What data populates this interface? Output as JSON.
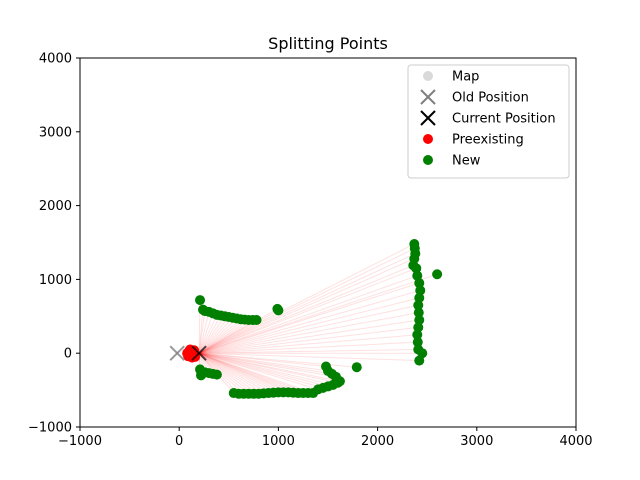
{
  "chart_data": {
    "type": "scatter",
    "title": "Splitting Points",
    "xlabel": "",
    "ylabel": "",
    "xlim": [
      -1000,
      4000
    ],
    "ylim": [
      -1000,
      4000
    ],
    "x_ticks": [
      -1000,
      0,
      1000,
      2000,
      3000,
      4000
    ],
    "y_ticks": [
      -1000,
      0,
      1000,
      2000,
      3000,
      4000
    ],
    "x_tick_labels": [
      "−1000",
      "0",
      "1000",
      "2000",
      "3000",
      "4000"
    ],
    "y_tick_labels": [
      "−1000",
      "0",
      "1000",
      "2000",
      "3000",
      "4000"
    ],
    "grid": false,
    "legend_position": "top-right",
    "legend": [
      {
        "label": "Map",
        "marker": "circle",
        "color": "#d9d9d9"
      },
      {
        "label": "Old Position",
        "marker": "x",
        "color": "#808080"
      },
      {
        "label": "Current Position",
        "marker": "x",
        "color": "#000000"
      },
      {
        "label": "Preexisting",
        "marker": "circle",
        "color": "#ff0000"
      },
      {
        "label": "New",
        "marker": "circle",
        "color": "#007f00"
      }
    ],
    "old_position": {
      "x": -20,
      "y": 0
    },
    "current_position": {
      "x": 200,
      "y": 0
    },
    "series": [
      {
        "name": "Preexisting",
        "color": "#ff0000",
        "points": [
          {
            "x": 80,
            "y": 0
          },
          {
            "x": 100,
            "y": 30
          },
          {
            "x": 120,
            "y": -20
          },
          {
            "x": 140,
            "y": 10
          },
          {
            "x": 90,
            "y": -40
          },
          {
            "x": 160,
            "y": -50
          },
          {
            "x": 110,
            "y": 50
          },
          {
            "x": 130,
            "y": -60
          },
          {
            "x": 150,
            "y": 40
          }
        ]
      },
      {
        "name": "New",
        "color": "#007f00",
        "points": [
          {
            "x": 210,
            "y": 720
          },
          {
            "x": 240,
            "y": 590
          },
          {
            "x": 260,
            "y": 570
          },
          {
            "x": 300,
            "y": 560
          },
          {
            "x": 340,
            "y": 540
          },
          {
            "x": 380,
            "y": 520
          },
          {
            "x": 420,
            "y": 510
          },
          {
            "x": 460,
            "y": 500
          },
          {
            "x": 500,
            "y": 490
          },
          {
            "x": 540,
            "y": 480
          },
          {
            "x": 580,
            "y": 470
          },
          {
            "x": 620,
            "y": 460
          },
          {
            "x": 660,
            "y": 455
          },
          {
            "x": 700,
            "y": 450
          },
          {
            "x": 740,
            "y": 450
          },
          {
            "x": 780,
            "y": 450
          },
          {
            "x": 990,
            "y": 600
          },
          {
            "x": 1000,
            "y": 580
          },
          {
            "x": 210,
            "y": -220
          },
          {
            "x": 220,
            "y": -300
          },
          {
            "x": 260,
            "y": -260
          },
          {
            "x": 300,
            "y": -270
          },
          {
            "x": 340,
            "y": -280
          },
          {
            "x": 380,
            "y": -290
          },
          {
            "x": 550,
            "y": -540
          },
          {
            "x": 600,
            "y": -550
          },
          {
            "x": 650,
            "y": -550
          },
          {
            "x": 700,
            "y": -550
          },
          {
            "x": 750,
            "y": -550
          },
          {
            "x": 800,
            "y": -550
          },
          {
            "x": 850,
            "y": -545
          },
          {
            "x": 900,
            "y": -540
          },
          {
            "x": 950,
            "y": -535
          },
          {
            "x": 1000,
            "y": -530
          },
          {
            "x": 1050,
            "y": -530
          },
          {
            "x": 1100,
            "y": -530
          },
          {
            "x": 1150,
            "y": -535
          },
          {
            "x": 1200,
            "y": -540
          },
          {
            "x": 1250,
            "y": -540
          },
          {
            "x": 1300,
            "y": -540
          },
          {
            "x": 1350,
            "y": -540
          },
          {
            "x": 1400,
            "y": -490
          },
          {
            "x": 1450,
            "y": -470
          },
          {
            "x": 1500,
            "y": -450
          },
          {
            "x": 1550,
            "y": -430
          },
          {
            "x": 1600,
            "y": -400
          },
          {
            "x": 1620,
            "y": -380
          },
          {
            "x": 1580,
            "y": -320
          },
          {
            "x": 1540,
            "y": -280
          },
          {
            "x": 1500,
            "y": -240
          },
          {
            "x": 1480,
            "y": -180
          },
          {
            "x": 1790,
            "y": -190
          },
          {
            "x": 2370,
            "y": 1480
          },
          {
            "x": 2375,
            "y": 1420
          },
          {
            "x": 2380,
            "y": 1350
          },
          {
            "x": 2370,
            "y": 1280
          },
          {
            "x": 2360,
            "y": 1190
          },
          {
            "x": 2390,
            "y": 1150
          },
          {
            "x": 2400,
            "y": 1050
          },
          {
            "x": 2420,
            "y": 950
          },
          {
            "x": 2430,
            "y": 850
          },
          {
            "x": 2420,
            "y": 750
          },
          {
            "x": 2410,
            "y": 650
          },
          {
            "x": 2415,
            "y": 550
          },
          {
            "x": 2420,
            "y": 450
          },
          {
            "x": 2410,
            "y": 350
          },
          {
            "x": 2400,
            "y": 250
          },
          {
            "x": 2405,
            "y": 150
          },
          {
            "x": 2410,
            "y": 50
          },
          {
            "x": 2420,
            "y": -100
          },
          {
            "x": 2450,
            "y": 0
          },
          {
            "x": 2600,
            "y": 1070
          }
        ]
      }
    ]
  }
}
